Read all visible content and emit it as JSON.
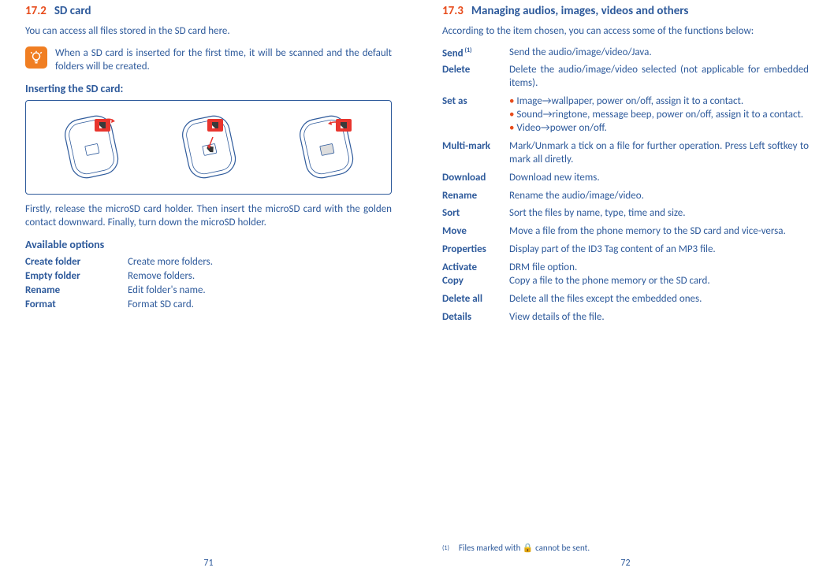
{
  "left": {
    "section_num": "17.2",
    "section_title": "SD card",
    "intro": "You can access all files stored in the SD card here.",
    "tip": "When a SD card is inserted for the first time, it will be scanned and the default folders will be created.",
    "insert_heading": "Inserting the SD card:",
    "insert_desc": "Firstly, release the microSD card holder. Then insert the microSD card with the golden contact downward. Finally, turn down the microSD holder.",
    "avail_heading": "Available options",
    "options": [
      {
        "label": "Create folder",
        "desc": "Create more folders."
      },
      {
        "label": "Empty folder",
        "desc": "Remove folders."
      },
      {
        "label": "Rename",
        "desc": "Edit folder's name."
      },
      {
        "label": "Format",
        "desc": "Format SD card."
      }
    ],
    "page_num": "71"
  },
  "right": {
    "section_num": "17.3",
    "section_title": "Managing audios, images, videos and others",
    "intro": "According to the item chosen, you can access some of the functions below:",
    "functions": [
      {
        "label": "Send",
        "sup": "(1)",
        "desc": "Send the audio/image/video/Java."
      },
      {
        "label": "Delete",
        "desc": "Delete the audio/image/video selected (not applicable for embedded items)."
      },
      {
        "label": "Set as",
        "desc_list": [
          "Image→wallpaper, power on/off, assign it to a contact.",
          "Sound→ringtone, message beep, power on/off, assign it to a contact.",
          "Video→power on/off."
        ]
      },
      {
        "label": "Multi-mark",
        "desc": "Mark/Unmark a tick on a file for further operation. Press Left softkey to mark all diretly."
      },
      {
        "label": "Download",
        "desc": "Download new items."
      },
      {
        "label": "Rename",
        "desc": "Rename the audio/image/video."
      },
      {
        "label": "Sort",
        "desc": "Sort the files by name, type, time and size."
      },
      {
        "label": "Move",
        "desc": "Move a file from the phone memory to the SD card and vice-versa."
      },
      {
        "label": "Properties",
        "desc": "Display part of the ID3 Tag content of an MP3 file."
      },
      {
        "label": "Activate",
        "desc": "DRM file option."
      },
      {
        "label": "Copy",
        "desc": "Copy a file to the phone memory or the SD card.",
        "tight": true
      },
      {
        "label": "Delete all",
        "desc": "Delete all the files except the embedded ones."
      },
      {
        "label": "Details",
        "desc": "View details of the file."
      }
    ],
    "footnote_sup": "(1)",
    "footnote_text_before": "Files marked with ",
    "footnote_text_after": " cannot be sent.",
    "page_num": "72"
  },
  "colors": {
    "text": "#2e5a9b",
    "accent": "#e74c1c",
    "tip_bg": "#f07e22",
    "sd_red": "#e8352e"
  }
}
